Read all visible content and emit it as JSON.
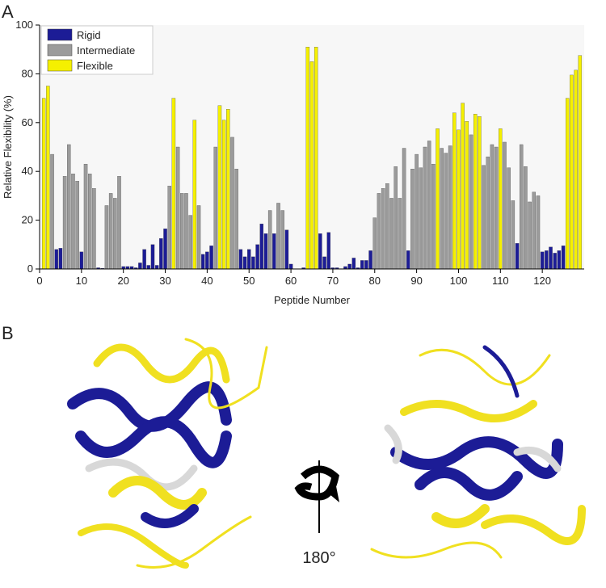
{
  "panel_a_label": "A",
  "panel_b_label": "B",
  "rotation_label": "180°",
  "chart_data": {
    "type": "bar",
    "x_label": "Peptide Number",
    "y_label": "Relative Flexibility (%)",
    "x": [
      1,
      2,
      3,
      4,
      5,
      6,
      7,
      8,
      9,
      10,
      11,
      12,
      13,
      14,
      15,
      16,
      17,
      18,
      19,
      20,
      21,
      22,
      23,
      24,
      25,
      26,
      27,
      28,
      29,
      30,
      31,
      32,
      33,
      34,
      35,
      36,
      37,
      38,
      39,
      40,
      41,
      42,
      43,
      44,
      45,
      46,
      47,
      48,
      49,
      50,
      51,
      52,
      53,
      54,
      55,
      56,
      57,
      58,
      59,
      60,
      61,
      62,
      63,
      64,
      65,
      66,
      67,
      68,
      69,
      70,
      71,
      72,
      73,
      74,
      75,
      76,
      77,
      78,
      79,
      80,
      81,
      82,
      83,
      84,
      85,
      86,
      87,
      88,
      89,
      90,
      91,
      92,
      93,
      94,
      95,
      96,
      97,
      98,
      99,
      100,
      101,
      102,
      103,
      104,
      105,
      106,
      107,
      108,
      109,
      110,
      111,
      112,
      113,
      114,
      115,
      116,
      117,
      118,
      119,
      120,
      121,
      122,
      123,
      124,
      125,
      126,
      127,
      128,
      129
    ],
    "series": [
      {
        "name": "Rigid",
        "color": "#1c1c96",
        "values": [
          null,
          null,
          null,
          8,
          8.5,
          null,
          null,
          null,
          null,
          7,
          null,
          null,
          null,
          0.5,
          0.3,
          null,
          null,
          null,
          null,
          1,
          1,
          1,
          0.5,
          2.5,
          8,
          1.5,
          10,
          1.5,
          12.5,
          16.5,
          null,
          null,
          null,
          null,
          null,
          null,
          null,
          null,
          6,
          7,
          9.5,
          null,
          null,
          null,
          null,
          null,
          null,
          8,
          5,
          8,
          5,
          10,
          18.5,
          14.5,
          null,
          14.5,
          null,
          null,
          16,
          2,
          0,
          0,
          0.5,
          null,
          null,
          null,
          14.5,
          5,
          15,
          0.5,
          0.5,
          0,
          1,
          2,
          4.5,
          0.5,
          3.5,
          3.5,
          7.5,
          null,
          null,
          null,
          null,
          null,
          null,
          null,
          null,
          7.5,
          null,
          null,
          null,
          null,
          null,
          null,
          null,
          null,
          null,
          null,
          null,
          null,
          null,
          null,
          null,
          null,
          null,
          null,
          null,
          null,
          null,
          null,
          null,
          null,
          null,
          10.5,
          null,
          null,
          null,
          null,
          null,
          7,
          7.5,
          9,
          6.5,
          7.5,
          9.5,
          null,
          null,
          null,
          null
        ]
      },
      {
        "name": "Intermediate",
        "color": "#9b9b9b",
        "values": [
          null,
          null,
          47,
          null,
          null,
          38,
          51,
          39,
          36,
          null,
          43,
          39,
          33,
          null,
          null,
          26,
          31,
          29,
          38,
          null,
          null,
          null,
          null,
          null,
          null,
          null,
          null,
          null,
          null,
          null,
          34,
          null,
          50,
          31,
          31,
          22,
          null,
          26,
          null,
          null,
          null,
          50,
          null,
          null,
          null,
          54,
          41,
          null,
          null,
          null,
          null,
          null,
          null,
          null,
          24,
          null,
          27,
          24,
          null,
          null,
          null,
          null,
          null,
          null,
          null,
          null,
          null,
          null,
          null,
          null,
          null,
          null,
          null,
          null,
          null,
          null,
          null,
          null,
          null,
          21,
          31,
          33,
          35,
          29,
          42,
          29,
          49.5,
          null,
          41,
          47,
          41.5,
          50,
          52.5,
          43,
          null,
          49.5,
          47.5,
          50.5,
          null,
          null,
          null,
          null,
          55,
          null,
          null,
          42.5,
          46,
          51,
          50,
          null,
          52,
          41.5,
          28,
          null,
          51,
          42,
          27.5,
          31.5,
          30,
          null,
          null,
          null,
          null,
          null,
          null,
          null,
          null,
          null,
          null
        ]
      },
      {
        "name": "Flexible",
        "color": "#f5f000",
        "values": [
          70,
          75,
          null,
          null,
          null,
          null,
          null,
          null,
          null,
          null,
          null,
          null,
          null,
          null,
          null,
          null,
          null,
          null,
          null,
          null,
          null,
          null,
          null,
          null,
          null,
          null,
          null,
          null,
          null,
          null,
          null,
          70,
          null,
          null,
          null,
          null,
          61,
          null,
          null,
          null,
          null,
          null,
          67,
          61,
          65.5,
          null,
          null,
          null,
          null,
          null,
          null,
          null,
          null,
          null,
          null,
          null,
          null,
          null,
          null,
          null,
          null,
          null,
          null,
          91,
          85,
          91,
          null,
          null,
          null,
          null,
          null,
          null,
          null,
          null,
          null,
          null,
          null,
          null,
          null,
          null,
          null,
          null,
          null,
          null,
          null,
          null,
          null,
          null,
          null,
          null,
          null,
          null,
          null,
          null,
          57.5,
          null,
          null,
          null,
          64,
          57,
          68,
          60.5,
          null,
          63.5,
          62.5,
          null,
          null,
          null,
          null,
          57.5,
          null,
          null,
          null,
          null,
          null,
          null,
          null,
          null,
          null,
          null,
          null,
          null,
          null,
          null,
          null,
          70,
          79.5,
          81.5,
          87.5
        ]
      }
    ],
    "xlim": [
      0,
      130
    ],
    "xticks": [
      0,
      10,
      20,
      30,
      40,
      50,
      60,
      70,
      80,
      90,
      100,
      110,
      120
    ],
    "ylim": [
      0,
      100
    ],
    "yticks": [
      0,
      20,
      40,
      60,
      80,
      100
    ],
    "legend": "top-left"
  }
}
